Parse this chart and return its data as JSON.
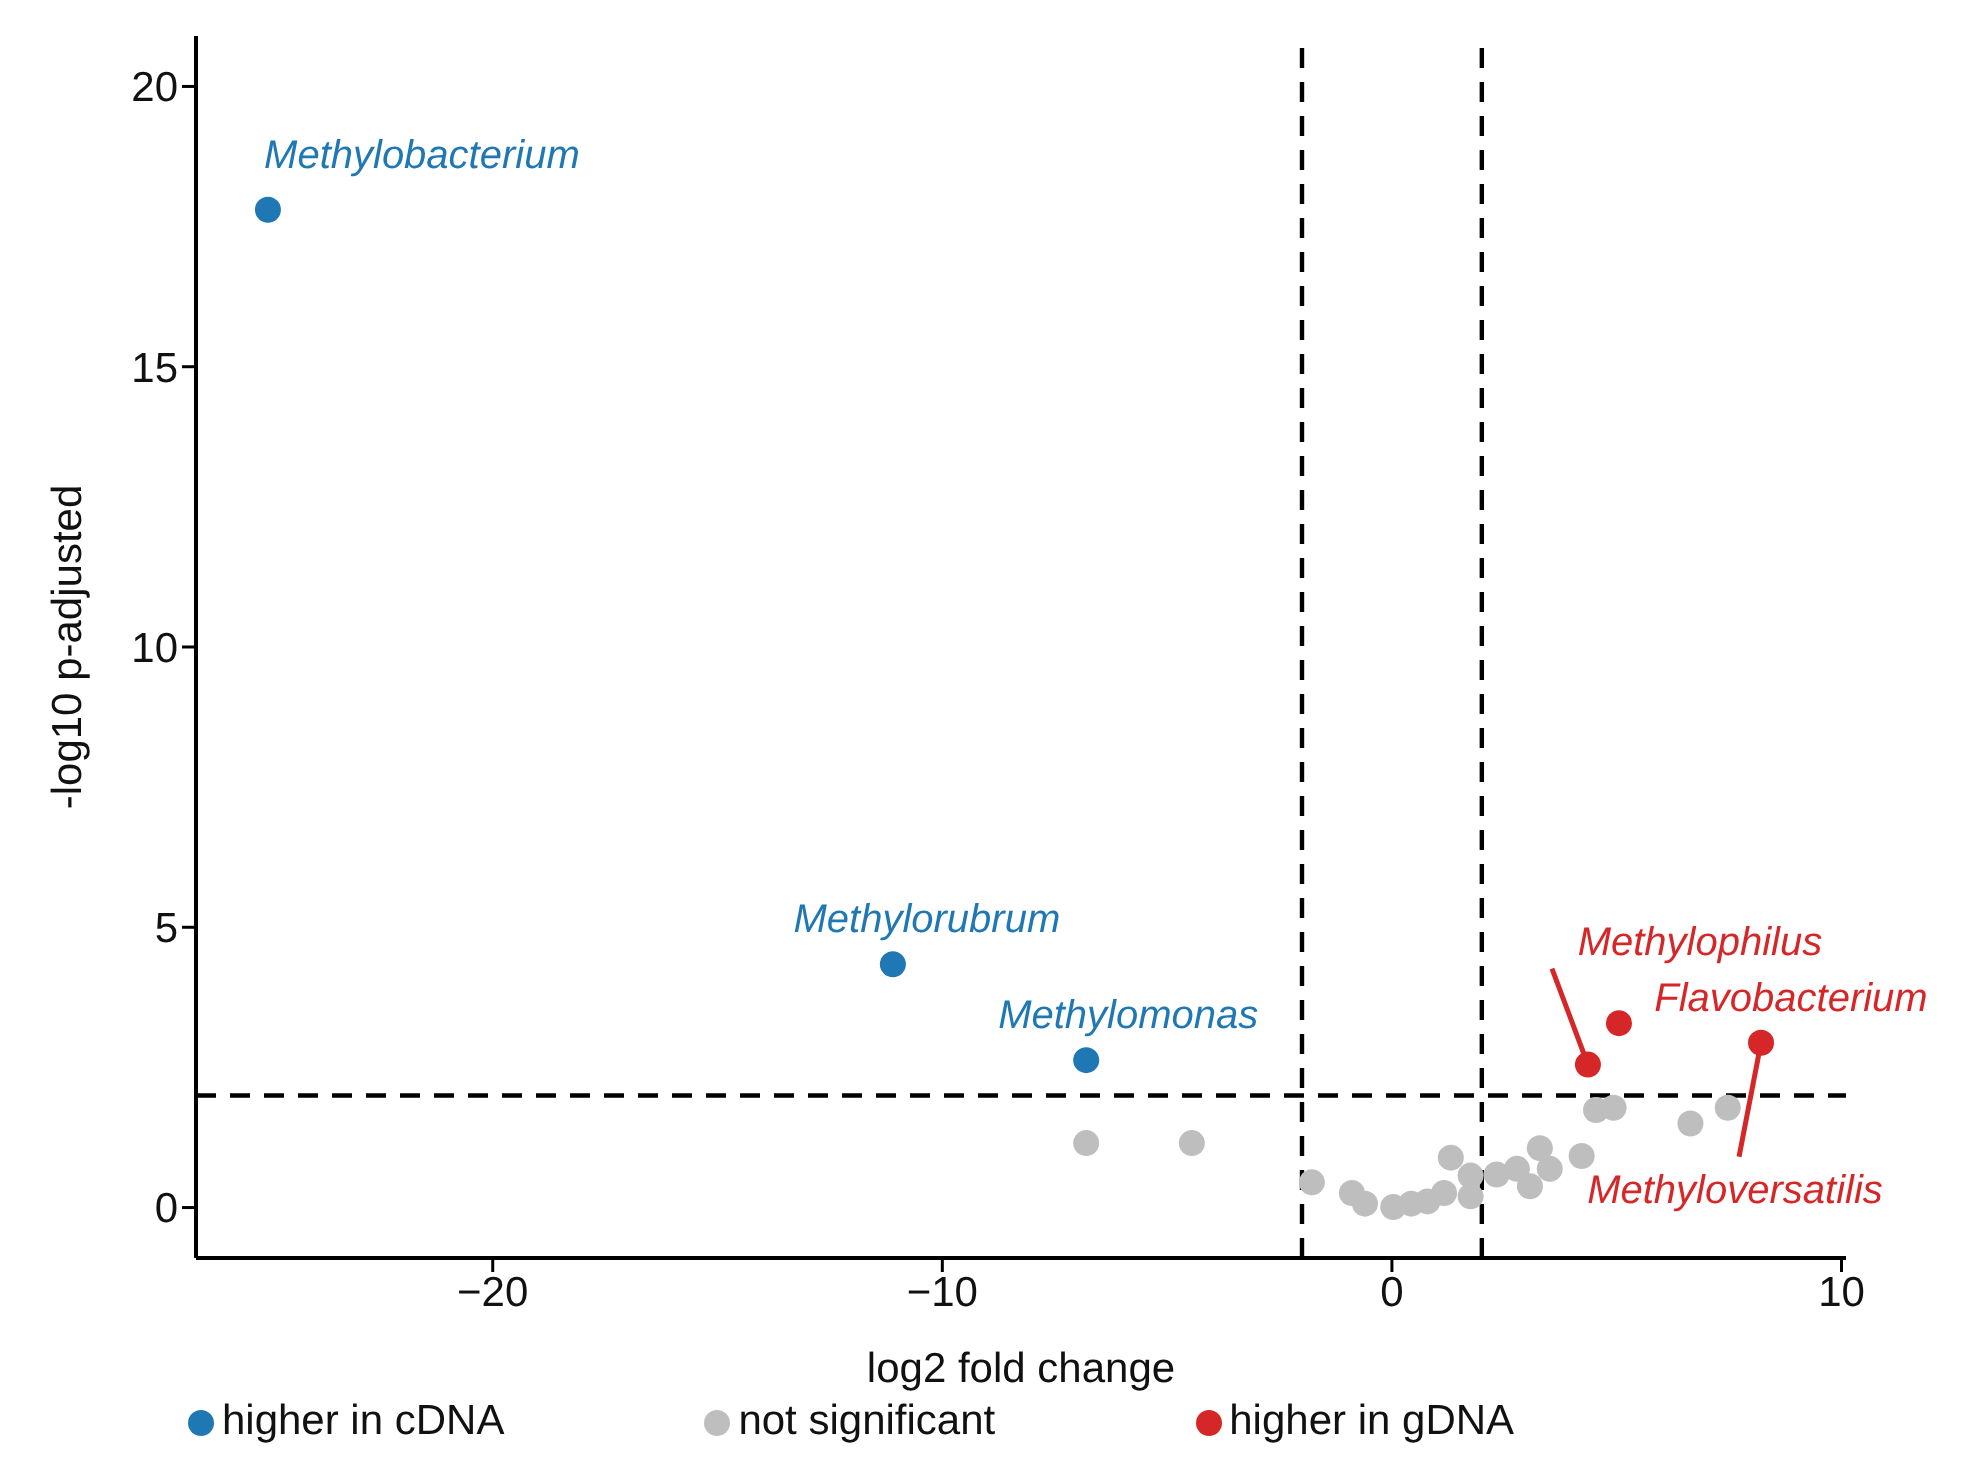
{
  "chart_data": {
    "type": "scatter",
    "xlabel": "log2 fold change",
    "ylabel": "-log10 p-adjusted",
    "xlim": [
      -26.6,
      10.1
    ],
    "xticks": [
      {
        "value": -20,
        "label": "−20"
      },
      {
        "value": -10,
        "label": "−10"
      },
      0,
      10
    ],
    "ylim": [
      -0.9,
      20.9
    ],
    "yticks": [
      0,
      5,
      10,
      15,
      20
    ],
    "grid": false,
    "legend": "bottom",
    "marker": "circle",
    "series": [
      {
        "name": "higher in cDNA",
        "color": "#1f78b4",
        "x": [
          -25.0,
          -11.1,
          -6.8
        ],
        "values": [
          17.8,
          4.34,
          2.63
        ]
      },
      {
        "name": "not significant",
        "color": "#bebebe",
        "x": [
          -6.8,
          -4.45,
          -1.78,
          -0.89,
          -0.6,
          0.03,
          0.43,
          0.79,
          1.16,
          1.31,
          1.75,
          1.75,
          2.33,
          2.78,
          3.07,
          3.29,
          3.51,
          4.22,
          4.54,
          4.93,
          6.64,
          7.47
        ],
        "values": [
          1.15,
          1.15,
          0.45,
          0.26,
          0.07,
          0.01,
          0.07,
          0.11,
          0.26,
          0.89,
          0.57,
          0.2,
          0.59,
          0.69,
          0.38,
          1.06,
          0.69,
          0.92,
          1.74,
          1.78,
          1.5,
          1.78
        ]
      },
      {
        "name": "higher in gDNA",
        "color": "#d62728",
        "x": [
          4.36,
          5.05,
          8.21
        ],
        "values": [
          2.55,
          3.29,
          2.94
        ]
      }
    ],
    "ref_lines": [
      {
        "axis": "x",
        "value": -2,
        "color": "#000000",
        "line_style": "dashed"
      },
      {
        "axis": "x",
        "value": 2,
        "color": "#000000",
        "line_style": "dashed"
      },
      {
        "axis": "y",
        "value": 2,
        "color": "#000000",
        "line_style": "dashed"
      }
    ],
    "annotations": [
      {
        "text": "Methylobacterium",
        "x": -25.0,
        "y": 17.8
      },
      {
        "text": "Methylorubrum",
        "x": -11.1,
        "y": 4.34
      },
      {
        "text": "Methylomonas",
        "x": -6.8,
        "y": 2.63
      },
      {
        "text": "Methylophilus",
        "x": 4.36,
        "y": 2.55
      },
      {
        "text": "Flavobacterium",
        "x": 5.05,
        "y": 3.29
      },
      {
        "text": "Methyloversatilis",
        "x": 8.21,
        "y": 2.94
      }
    ]
  }
}
